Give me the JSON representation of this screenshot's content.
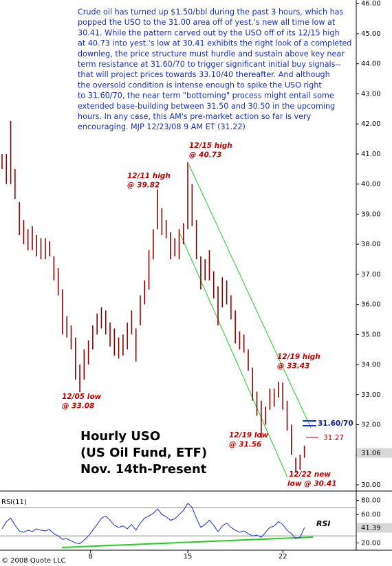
{
  "chart_data": [
    {
      "type": "range",
      "note_lines": [
        "Crude oil has turned up $1.50/bbl during the past 3 hours, which has",
        "popped the USO to the 31.00 area off of yest.'s new all time low at",
        "30.41. While the pattern carved out by the USO off of its 12/15 high",
        "at 40.73 into yest.'s low at 30.41 exhibits the right look of a completed",
        "downleg, the price structure must hurdle and sustain above key near",
        "term resistance at 31.60/70 to trigger significant initial buy signals--",
        "that will project prices towards 33.10/40 thereafter. And although",
        "the oversold condition is intense enough to spike the USO right",
        "to 31.60/70, the near term \"bottoming\" process might entail some",
        "extended base-building between 31.50 and 30.50 in the upcoming",
        "hours. In any case, this AM's pre-market action so far is very",
        "encouraging.  MJP  12/23/08  9 AM ET  (31.22)"
      ],
      "title_lines": [
        "Hourly USO",
        "(US Oil Fund, ETF)",
        "Nov. 14th-Present"
      ],
      "annotations": [
        [
          "12/15 high",
          "@ 40.73"
        ],
        [
          "12/11 high",
          "@ 39.82"
        ],
        [
          "12/05 low",
          "@ 33.08"
        ],
        [
          "12/19 high",
          "@ 33.43"
        ],
        [
          "12/19 low",
          "@ 31.56"
        ],
        [
          "12/22 new",
          "low @ 30.41"
        ]
      ],
      "resistance_label": "31.60/70",
      "level_label": "31.27",
      "last_price": {
        "value": 31.06,
        "label": "31.06"
      },
      "color": "#8b0000",
      "x": [
        0,
        1,
        2,
        3,
        4,
        5,
        6,
        7,
        8,
        9,
        10,
        11,
        12,
        13,
        14,
        15,
        16,
        17,
        18,
        19,
        20,
        21,
        22,
        23,
        24,
        25,
        26,
        27,
        28,
        29,
        30,
        31,
        32,
        33,
        34,
        35,
        36,
        37,
        38,
        39,
        40,
        41,
        42,
        43,
        44,
        45,
        46,
        47,
        48,
        49,
        50,
        51,
        52,
        53,
        54,
        55,
        56,
        57,
        58,
        59,
        60,
        61,
        62,
        63,
        64,
        65,
        66,
        67,
        68,
        69,
        70
      ],
      "high": [
        41.0,
        41.0,
        42.1,
        40.5,
        39.4,
        38.8,
        38.5,
        38.6,
        38.3,
        38.2,
        38.2,
        38.1,
        37.6,
        37.2,
        36.5,
        35.6,
        35.3,
        34.9,
        34.0,
        34.5,
        34.8,
        35.3,
        35.7,
        35.9,
        35.8,
        35.4,
        35.2,
        34.9,
        35.0,
        35.4,
        35.8,
        35.2,
        36.3,
        36.8,
        37.8,
        38.5,
        39.82,
        39.2,
        38.8,
        38.4,
        38.2,
        38.5,
        38.7,
        40.73,
        40.0,
        38.8,
        37.6,
        37.5,
        37.8,
        37.1,
        36.6,
        36.9,
        36.8,
        36.3,
        35.8,
        35.1,
        35.0,
        34.5,
        33.9,
        33.1,
        32.8,
        32.6,
        33.2,
        33.2,
        33.43,
        33.4,
        32.8,
        32.0,
        30.9,
        31.0,
        31.3
      ],
      "low": [
        40.5,
        40.0,
        40.0,
        39.5,
        38.3,
        38.0,
        37.8,
        37.8,
        37.6,
        37.5,
        37.5,
        37.6,
        36.8,
        36.3,
        35.0,
        34.9,
        34.5,
        33.5,
        33.08,
        33.5,
        34.0,
        34.5,
        35.0,
        35.2,
        35.0,
        34.6,
        34.3,
        34.2,
        34.3,
        34.5,
        35.0,
        34.1,
        35.3,
        36.0,
        36.5,
        37.5,
        38.5,
        38.3,
        38.2,
        37.5,
        37.6,
        37.5,
        38.0,
        38.5,
        38.6,
        37.5,
        36.5,
        36.8,
        36.8,
        36.2,
        35.3,
        35.9,
        36.0,
        35.5,
        34.7,
        34.5,
        34.4,
        33.8,
        32.8,
        32.3,
        31.56,
        32.0,
        32.5,
        32.6,
        32.9,
        32.5,
        31.8,
        31.0,
        30.41,
        30.5,
        30.9
      ],
      "xlim": [
        0,
        82
      ],
      "xticks": [
        {
          "value": 20.5,
          "label": "8"
        },
        {
          "value": 43,
          "label": "15"
        },
        {
          "value": 65,
          "label": "22"
        }
      ],
      "ylim": [
        29.84,
        46.12
      ],
      "yticks": [
        {
          "value": 30,
          "label": "30.00"
        },
        {
          "value": 31,
          "label": "31.00"
        },
        {
          "value": 32,
          "label": "32.00"
        },
        {
          "value": 33,
          "label": "33.00"
        },
        {
          "value": 34,
          "label": "34.00"
        },
        {
          "value": 35,
          "label": "35.00"
        },
        {
          "value": 36,
          "label": "36.00"
        },
        {
          "value": 37,
          "label": "37.00"
        },
        {
          "value": 38,
          "label": "38.00"
        },
        {
          "value": 39,
          "label": "39.00"
        },
        {
          "value": 40,
          "label": "40.00"
        },
        {
          "value": 41,
          "label": "41.00"
        },
        {
          "value": 42,
          "label": "42.00"
        },
        {
          "value": 43,
          "label": "43.00"
        },
        {
          "value": 44,
          "label": "44.00"
        },
        {
          "value": 45,
          "label": "45.00"
        },
        {
          "value": 46,
          "label": "46.00"
        }
      ],
      "copyright": "© 2008 Quote LLC"
    },
    {
      "type": "line",
      "title": "RSI(11)",
      "label": "RSI",
      "color": "#1a2fd0",
      "values": [
        40,
        50,
        55,
        45,
        37,
        35,
        38,
        36,
        40,
        38,
        37,
        39,
        33,
        30,
        25,
        26,
        23,
        20,
        19,
        24,
        30,
        38,
        46,
        55,
        58,
        52,
        45,
        42,
        44,
        40,
        46,
        38,
        48,
        55,
        58,
        62,
        68,
        60,
        57,
        52,
        54,
        60,
        66,
        76,
        70,
        55,
        42,
        46,
        52,
        45,
        36,
        44,
        48,
        42,
        38,
        35,
        37,
        33,
        30,
        31,
        28,
        35,
        42,
        44,
        50,
        46,
        38,
        33,
        26,
        28,
        41.39
      ],
      "last_value": {
        "value": 41.39,
        "label": "41.39"
      },
      "reference_lines": [
        70,
        30
      ],
      "ylim": [
        9.8,
        93.2
      ],
      "yticks": [
        {
          "value": 20,
          "label": "20.00"
        },
        {
          "value": 60,
          "label": "60.00"
        },
        {
          "value": 80,
          "label": "80.00"
        }
      ]
    }
  ]
}
